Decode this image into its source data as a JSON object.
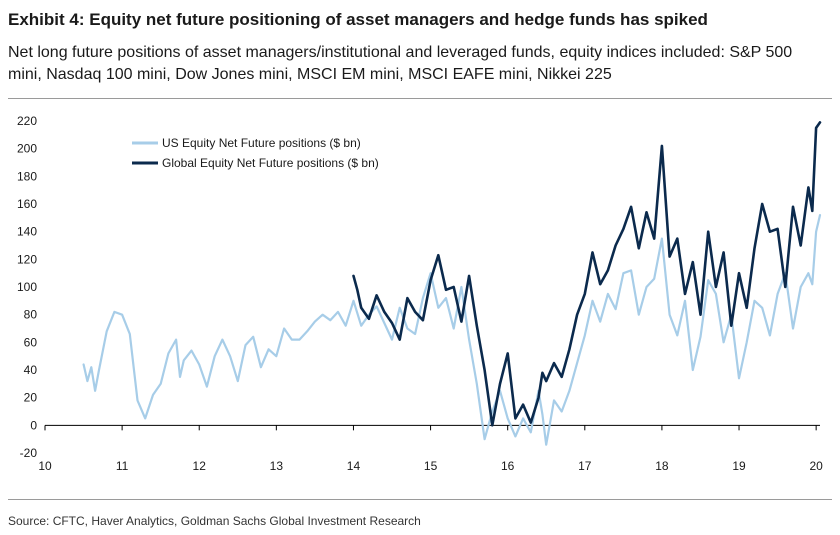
{
  "header": {
    "title": "Exhibit 4: Equity net future positioning of asset managers and hedge funds has spiked",
    "subtitle": "Net long future positions of asset managers/institutional and leveraged funds, equity indices included: S&P 500 mini, Nasdaq 100 mini, Dow Jones mini, MSCI EM mini, MSCI EAFE mini, Nikkei 225"
  },
  "footer": {
    "source": "Source: CFTC, Haver Analytics, Goldman Sachs Global Investment Research"
  },
  "chart_data": {
    "type": "line",
    "title": "",
    "xlabel": "",
    "ylabel": "",
    "xlim": [
      10,
      20.05
    ],
    "ylim": [
      -20,
      220
    ],
    "x_ticks": [
      10,
      11,
      12,
      13,
      14,
      15,
      16,
      17,
      18,
      19,
      20
    ],
    "y_ticks": [
      -20,
      0,
      20,
      40,
      60,
      80,
      100,
      120,
      140,
      160,
      180,
      200,
      220
    ],
    "grid": false,
    "legend_position": "top-left",
    "series": [
      {
        "name": "US Equity Net Future positions ($ bn)",
        "color": "#a7cde8",
        "x": [
          10.5,
          10.55,
          10.6,
          10.65,
          10.7,
          10.8,
          10.9,
          11.0,
          11.1,
          11.2,
          11.3,
          11.4,
          11.5,
          11.6,
          11.7,
          11.75,
          11.8,
          11.9,
          12.0,
          12.1,
          12.2,
          12.3,
          12.4,
          12.5,
          12.6,
          12.7,
          12.8,
          12.9,
          13.0,
          13.1,
          13.2,
          13.3,
          13.4,
          13.5,
          13.6,
          13.7,
          13.8,
          13.9,
          14.0,
          14.1,
          14.2,
          14.3,
          14.4,
          14.5,
          14.6,
          14.7,
          14.8,
          14.9,
          15.0,
          15.1,
          15.2,
          15.3,
          15.4,
          15.5,
          15.6,
          15.7,
          15.8,
          15.9,
          16.0,
          16.1,
          16.2,
          16.3,
          16.4,
          16.45,
          16.5,
          16.6,
          16.7,
          16.8,
          16.9,
          17.0,
          17.1,
          17.2,
          17.3,
          17.4,
          17.5,
          17.6,
          17.7,
          17.8,
          17.9,
          18.0,
          18.1,
          18.2,
          18.3,
          18.4,
          18.5,
          18.6,
          18.7,
          18.8,
          18.9,
          19.0,
          19.1,
          19.2,
          19.3,
          19.4,
          19.5,
          19.6,
          19.7,
          19.8,
          19.9,
          19.95,
          20.0,
          20.05
        ],
        "values": [
          44,
          32,
          42,
          25,
          40,
          68,
          82,
          80,
          66,
          18,
          5,
          22,
          30,
          52,
          62,
          35,
          47,
          54,
          44,
          28,
          50,
          62,
          50,
          32,
          58,
          64,
          42,
          55,
          50,
          70,
          62,
          62,
          68,
          75,
          80,
          76,
          82,
          72,
          90,
          72,
          80,
          86,
          74,
          62,
          85,
          70,
          66,
          92,
          110,
          85,
          92,
          70,
          100,
          62,
          30,
          -10,
          10,
          25,
          5,
          -8,
          5,
          -5,
          25,
          8,
          -14,
          18,
          10,
          25,
          45,
          65,
          90,
          75,
          95,
          84,
          110,
          112,
          80,
          100,
          106,
          135,
          80,
          65,
          90,
          40,
          64,
          105,
          95,
          60,
          80,
          34,
          60,
          90,
          85,
          65,
          95,
          110,
          70,
          100,
          110,
          102,
          140,
          152
        ]
      },
      {
        "name": "Global Equity Net Future positions ($ bn)",
        "color": "#0b2a4d",
        "x": [
          14.0,
          14.05,
          14.1,
          14.2,
          14.3,
          14.4,
          14.5,
          14.6,
          14.7,
          14.8,
          14.9,
          15.0,
          15.1,
          15.2,
          15.3,
          15.4,
          15.5,
          15.6,
          15.7,
          15.8,
          15.9,
          16.0,
          16.1,
          16.2,
          16.3,
          16.4,
          16.45,
          16.5,
          16.6,
          16.7,
          16.8,
          16.9,
          17.0,
          17.1,
          17.2,
          17.3,
          17.4,
          17.5,
          17.6,
          17.7,
          17.8,
          17.9,
          18.0,
          18.1,
          18.2,
          18.3,
          18.4,
          18.5,
          18.6,
          18.7,
          18.8,
          18.9,
          19.0,
          19.1,
          19.2,
          19.3,
          19.4,
          19.5,
          19.6,
          19.7,
          19.8,
          19.9,
          19.95,
          20.0,
          20.05
        ],
        "values": [
          108,
          98,
          85,
          77,
          94,
          82,
          74,
          62,
          92,
          82,
          76,
          105,
          123,
          98,
          100,
          75,
          108,
          72,
          40,
          0,
          30,
          52,
          5,
          15,
          2,
          20,
          38,
          32,
          45,
          35,
          55,
          80,
          95,
          125,
          102,
          112,
          130,
          142,
          158,
          128,
          154,
          135,
          202,
          122,
          135,
          95,
          118,
          80,
          140,
          100,
          125,
          72,
          110,
          85,
          128,
          160,
          140,
          142,
          100,
          158,
          130,
          172,
          155,
          215,
          219
        ]
      }
    ]
  }
}
